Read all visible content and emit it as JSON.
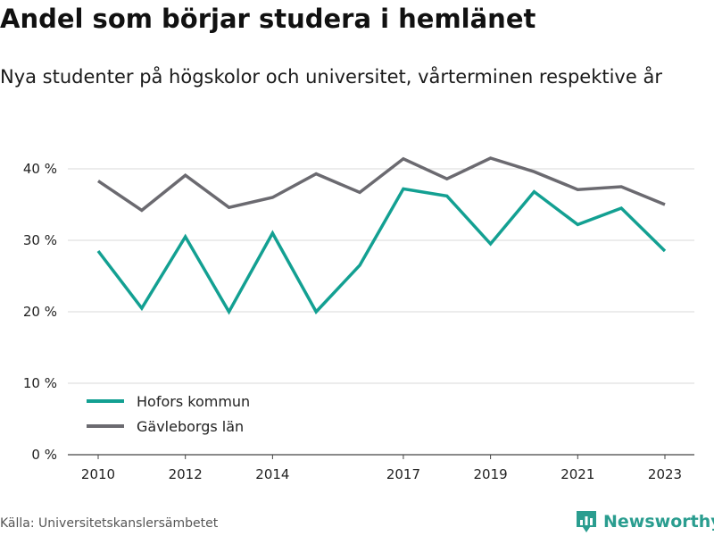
{
  "title": "Andel som börjar studera i hemlänet",
  "subtitle": "Nya studenter på högskolor och universitet, vårterminen respektive år",
  "source": "Källa: Universitetskanslersämbetet",
  "brand": {
    "name": "Newsworthy",
    "color": "#2a9d8f",
    "icon": "newsworthy-logo-icon"
  },
  "chart_data": {
    "type": "line",
    "x": [
      2010,
      2011,
      2012,
      2013,
      2014,
      2015,
      2016,
      2017,
      2018,
      2019,
      2020,
      2021,
      2022,
      2023
    ],
    "x_ticks": [
      "2010",
      "2012",
      "2014",
      "2017",
      "2019",
      "2021",
      "2023"
    ],
    "y_ticks": [
      "0 %",
      "10 %",
      "20 %",
      "30 %",
      "40 %"
    ],
    "ylim": [
      0,
      40
    ],
    "grid": true,
    "legend_position": "bottom-left",
    "series": [
      {
        "name": "Hofors kommun",
        "color": "#13a092",
        "values": [
          28.5,
          20.5,
          30.5,
          20.0,
          31.0,
          20.0,
          26.5,
          37.2,
          36.2,
          29.5,
          36.8,
          32.2,
          34.5,
          28.5
        ]
      },
      {
        "name": "Gävleborgs län",
        "color": "#6b6a70",
        "values": [
          38.3,
          34.2,
          39.1,
          34.6,
          36.0,
          39.3,
          36.7,
          41.4,
          38.6,
          41.5,
          39.6,
          37.1,
          37.5,
          35.0
        ]
      }
    ]
  }
}
